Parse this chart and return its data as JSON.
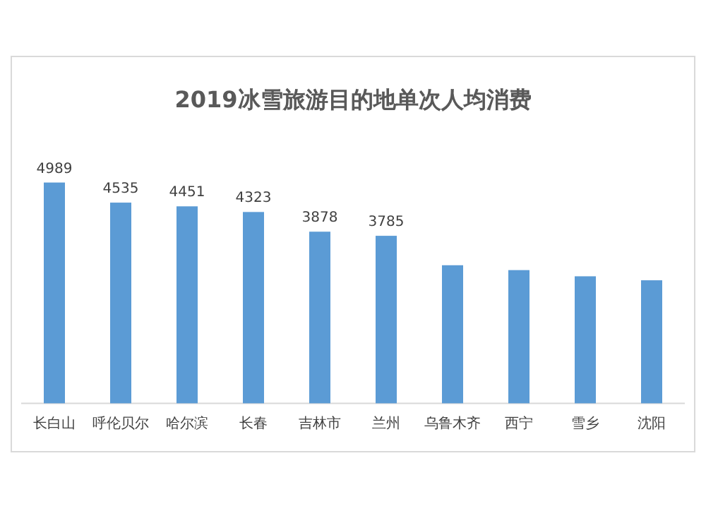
{
  "chart_data": {
    "type": "bar",
    "title": "2019冰雪旅游目的地单次人均消费",
    "categories": [
      "长白山",
      "呼伦贝尔",
      "哈尔滨",
      "长春",
      "吉林市",
      "兰州",
      "乌鲁木齐",
      "西宁",
      "雪乡",
      "沈阳"
    ],
    "values": [
      4989,
      4535,
      4451,
      4323,
      3878,
      3785,
      3120,
      3010,
      2870,
      2780
    ],
    "value_labels": [
      "4989",
      "4535",
      "4451",
      "4323",
      "3878",
      "3785",
      null,
      null,
      null,
      null
    ],
    "color": "#5b9bd5"
  }
}
